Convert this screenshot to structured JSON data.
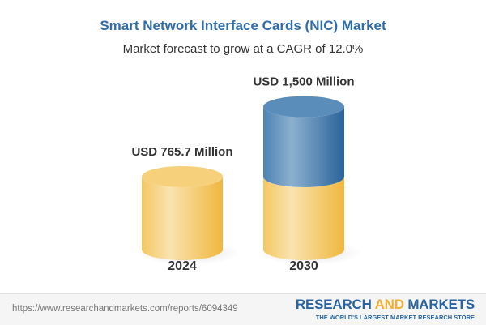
{
  "chart_data": {
    "type": "bar",
    "title": "Smart Network Interface Cards (NIC) Market",
    "subtitle": "Market forecast to grow at a CAGR of 12.0%",
    "categories": [
      "2024",
      "2030"
    ],
    "values": [
      765.7,
      1500
    ],
    "data_labels": [
      "USD 765.7 Million",
      "USD 1,500 Million"
    ],
    "style": "3d-cylinder",
    "colors": {
      "base": "#f2c45a",
      "growth": "#3d77aa",
      "title": "#2f6ca8"
    }
  },
  "footer": {
    "url": "https://www.researchandmarkets.com/reports/6094349",
    "logo_part1": "RESEARCH ",
    "logo_part2": "AND",
    "logo_part3": " MARKETS",
    "tagline": "THE WORLD'S LARGEST MARKET RESEARCH STORE"
  }
}
